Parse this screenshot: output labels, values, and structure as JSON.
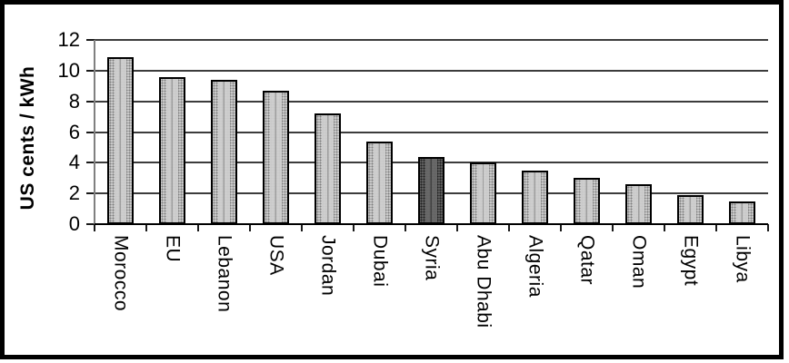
{
  "chart_data": {
    "type": "bar",
    "title": "",
    "ylabel": "US cents / kWh",
    "xlabel": "",
    "ylim": [
      0,
      12
    ],
    "yticks": [
      0,
      2,
      4,
      6,
      8,
      10,
      12
    ],
    "categories": [
      "Morocco",
      "EU",
      "Lebanon",
      "USA",
      "Jordan",
      "Dubai",
      "Syria",
      "Abu Dhabi",
      "Algeria",
      "Qatar",
      "Oman",
      "Egypt",
      "Libya"
    ],
    "values": [
      10.9,
      9.6,
      9.4,
      8.7,
      7.2,
      5.4,
      4.4,
      4.0,
      3.5,
      3.0,
      2.6,
      1.9,
      1.5
    ],
    "highlighted_category": "Syria",
    "grid": true,
    "legend": false,
    "colors": {
      "background": "#ffffff",
      "frame_border": "#000000",
      "bar_fill": "#c9c9c9",
      "bar_dots": "#7e7e7e",
      "highlight_fill": "#5e5e5e",
      "highlight_dots": "#1f1f1f",
      "bar_border": "#000000",
      "gridline": "#3c3c3c",
      "axis_line": "#808080",
      "baseline": "#000000",
      "text": "#000000"
    }
  }
}
